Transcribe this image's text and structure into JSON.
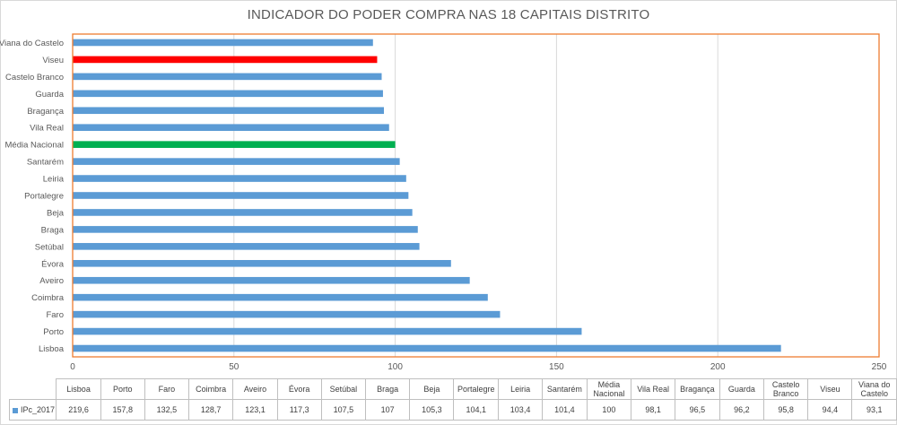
{
  "chart_data": {
    "type": "bar",
    "orientation": "horizontal",
    "title": "INDICADOR DO PODER COMPRA NAS 18 CAPITAIS DISTRITO",
    "categories": [
      "Lisboa",
      "Porto",
      "Faro",
      "Coimbra",
      "Aveiro",
      "Évora",
      "Setúbal",
      "Braga",
      "Beja",
      "Portalegre",
      "Leiria",
      "Santarém",
      "Média Nacional",
      "Vila Real",
      "Bragança",
      "Guarda",
      "Castelo Branco",
      "Viseu",
      "Viana do Castelo"
    ],
    "series": [
      {
        "name": "IPc_2017",
        "values": [
          219.6,
          157.8,
          132.5,
          128.7,
          123.1,
          117.3,
          107.5,
          107,
          105.3,
          104.1,
          103.4,
          101.4,
          100,
          98.1,
          96.5,
          96.2,
          95.8,
          94.4,
          93.1
        ],
        "display_values": [
          "219,6",
          "157,8",
          "132,5",
          "128,7",
          "123,1",
          "117,3",
          "107,5",
          "107",
          "105,3",
          "104,1",
          "103,4",
          "101,4",
          "100",
          "98,1",
          "96,5",
          "96,2",
          "95,8",
          "94,4",
          "93,1"
        ],
        "color": "#5b9bd5"
      }
    ],
    "highlights": {
      "Viseu": "#ff0000",
      "Média Nacional": "#00b050"
    },
    "xlim": [
      0,
      250
    ],
    "xticks": [
      0,
      50,
      100,
      150,
      200,
      250
    ],
    "grid": true,
    "plot_border_color": "#ed7d31",
    "legend": "data table below chart",
    "xlabel": "",
    "ylabel": ""
  }
}
